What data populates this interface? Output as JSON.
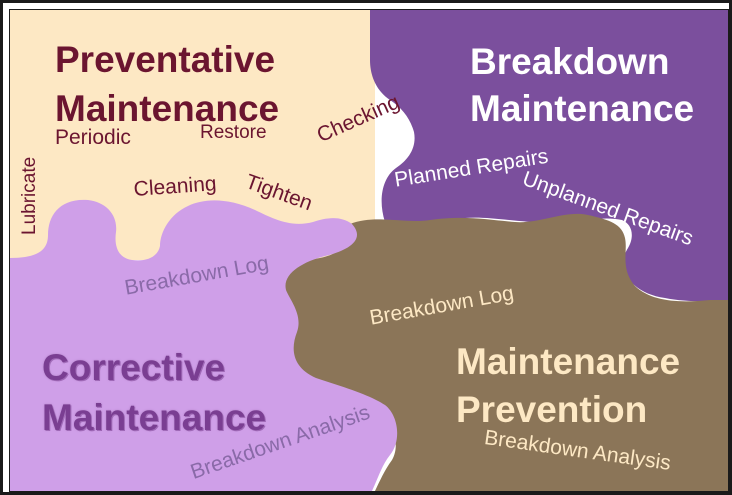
{
  "colors": {
    "preventative_bg": "#fde8c4",
    "breakdown_bg": "#7b4f9d",
    "corrective_bg": "#cf9fe8",
    "prevention_bg": "#8b7558",
    "preventative_text": "#6b1530",
    "corrective_text": "#7a3e92"
  },
  "preventative": {
    "title_line1": "Preventative",
    "title_line2": "Maintenance",
    "items": {
      "periodic": "Periodic",
      "restore": "Restore",
      "checking": "Checking",
      "cleaning": "Cleaning",
      "tighten": "Tighten",
      "lubricate": "Lubricate"
    }
  },
  "breakdown": {
    "title_line1": "Breakdown",
    "title_line2": "Maintenance",
    "items": {
      "planned": "Planned Repairs",
      "unplanned": "Unplanned Repairs"
    }
  },
  "corrective": {
    "title_line1": "Corrective",
    "title_line2": "Maintenance",
    "items": {
      "log": "Breakdown Log",
      "analysis": "Breakdown Analysis"
    }
  },
  "prevention": {
    "title_line1": "Maintenance",
    "title_line2": "Prevention",
    "items": {
      "log": "Breakdown Log",
      "analysis": "Breakdown Analysis"
    }
  }
}
